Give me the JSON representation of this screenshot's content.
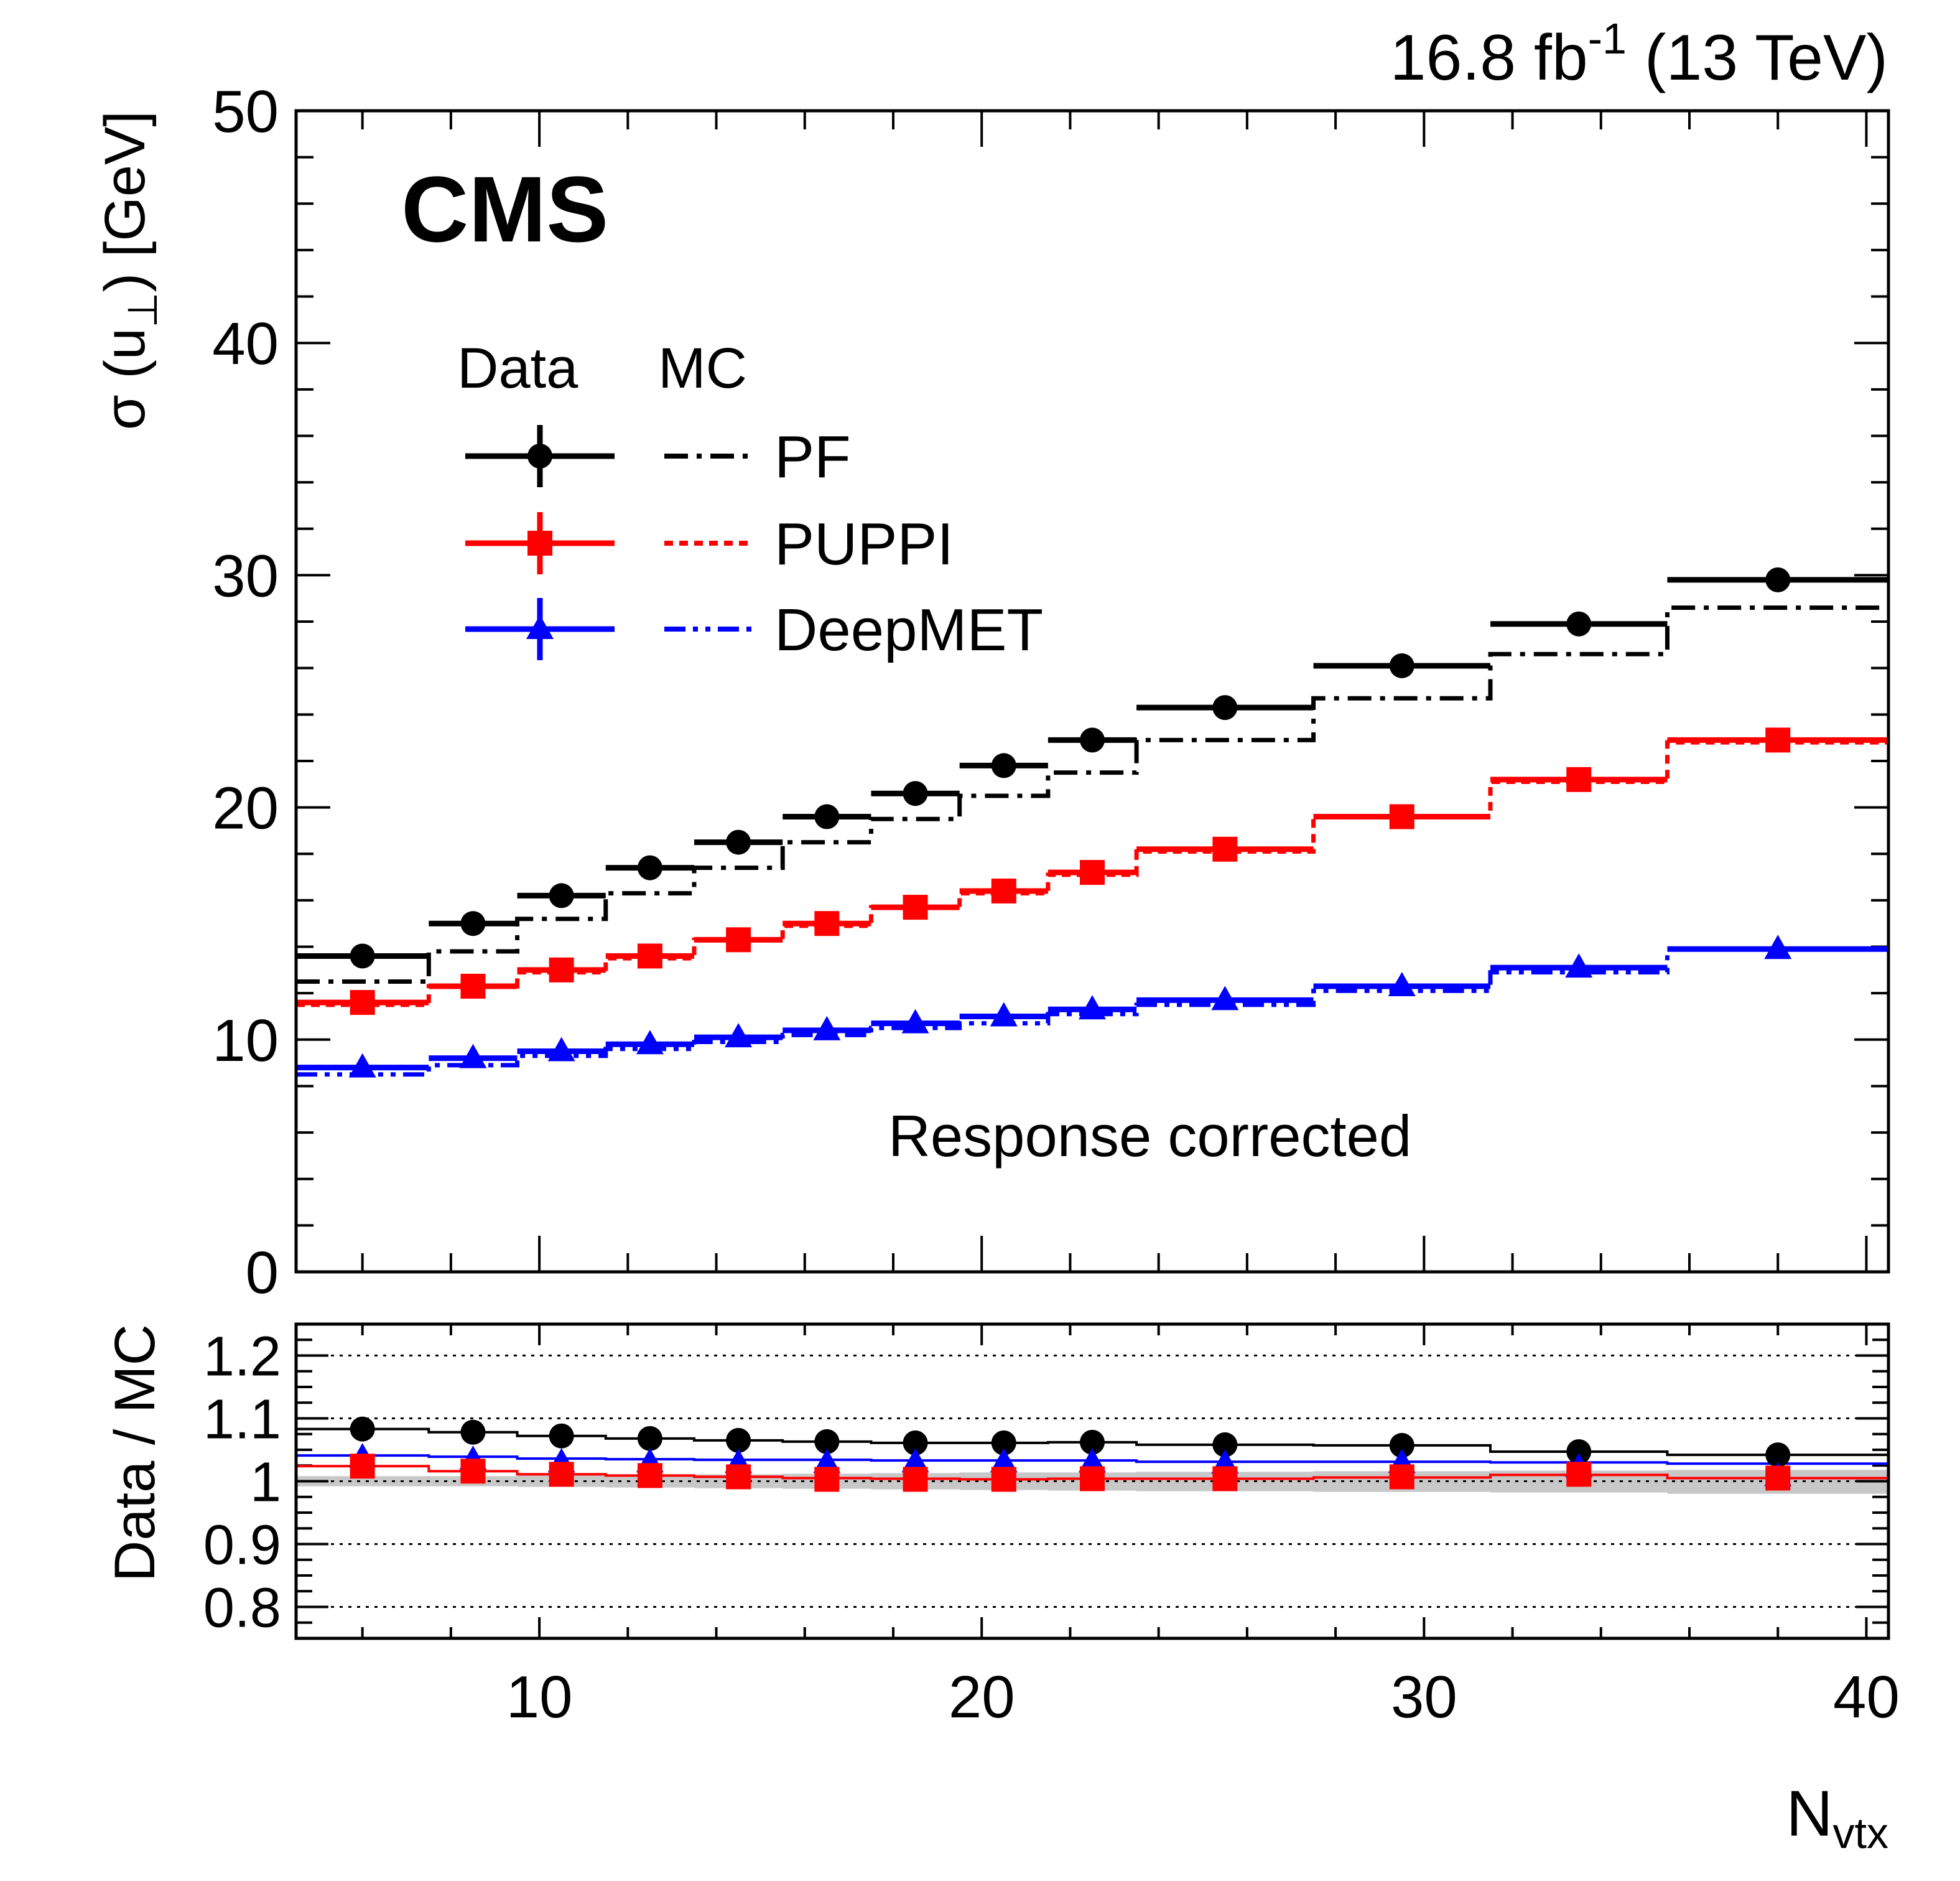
{
  "header": {
    "lumi_value": "16.8 fb",
    "lumi_exp": "-1",
    "energy": " (13 TeV)",
    "experiment": "CMS",
    "annotation": "Response corrected"
  },
  "legend": {
    "data_header": "Data",
    "mc_header": "MC",
    "entries": [
      "PF",
      "PUPPI",
      "DeepMET"
    ]
  },
  "colors": {
    "PF": "#000000",
    "PUPPI": "#ff0000",
    "DeepMET": "#0000ff",
    "band": "#c8c8c8"
  },
  "chart_data": [
    {
      "type": "line",
      "panel": "main",
      "ylabel_main": "σ (u",
      "ylabel_sub": "⊥",
      "ylabel_tail": ") [GeV]",
      "xlim": [
        4.5,
        40.5
      ],
      "ylim": [
        0,
        50
      ],
      "x_ticks": [
        10,
        20,
        30,
        40
      ],
      "y_ticks": [
        0,
        10,
        20,
        30,
        40,
        50
      ],
      "bin_edges": [
        4.5,
        7.5,
        9.5,
        11.5,
        13.5,
        15.5,
        17.5,
        19.5,
        21.5,
        23.5,
        27.5,
        31.5,
        35.5,
        40.5
      ],
      "x": [
        6,
        8.5,
        10.5,
        12.5,
        14.5,
        16.5,
        18.5,
        20.5,
        22.5,
        25.5,
        29.5,
        33.5,
        38
      ],
      "series": [
        {
          "name": "PF",
          "kind": "data",
          "marker": "circle",
          "values": [
            13.6,
            15.0,
            16.2,
            17.4,
            18.5,
            19.6,
            20.6,
            21.8,
            22.9,
            24.3,
            26.1,
            27.9,
            29.8
          ]
        },
        {
          "name": "PUPPI",
          "kind": "data",
          "marker": "square",
          "values": [
            11.6,
            12.3,
            13.0,
            13.6,
            14.3,
            15.0,
            15.7,
            16.4,
            17.2,
            18.2,
            19.6,
            21.2,
            22.9
          ]
        },
        {
          "name": "DeepMET",
          "kind": "data",
          "marker": "triangle",
          "values": [
            8.8,
            9.2,
            9.5,
            9.8,
            10.1,
            10.4,
            10.7,
            11.0,
            11.3,
            11.7,
            12.3,
            13.1,
            13.9
          ]
        },
        {
          "name": "PF",
          "kind": "mc",
          "style": "dash-dot",
          "values": [
            12.5,
            13.8,
            15.2,
            16.3,
            17.4,
            18.5,
            19.5,
            20.5,
            21.5,
            22.9,
            24.7,
            26.6,
            28.6
          ]
        },
        {
          "name": "PUPPI",
          "kind": "mc",
          "style": "dotted",
          "values": [
            11.5,
            12.3,
            12.9,
            13.5,
            14.3,
            14.9,
            15.7,
            16.3,
            17.1,
            18.1,
            19.6,
            21.1,
            22.8
          ]
        },
        {
          "name": "DeepMET",
          "kind": "mc",
          "style": "dash-dot-dot",
          "values": [
            8.5,
            8.9,
            9.3,
            9.6,
            9.9,
            10.2,
            10.5,
            10.7,
            11.1,
            11.5,
            12.1,
            12.9,
            13.9
          ]
        }
      ]
    },
    {
      "type": "line",
      "panel": "ratio",
      "ylabel": "Data  / MC",
      "xlabel_main": "N",
      "xlabel_sub": "vtx",
      "xlim": [
        4.5,
        40.5
      ],
      "ylim": [
        0.75,
        1.25
      ],
      "x_ticks": [
        10,
        20,
        30,
        40
      ],
      "y_ticks": [
        0.8,
        0.9,
        1,
        1.1,
        1.2
      ],
      "y_tick_labels": [
        "0.8",
        "0.9",
        "1",
        "1.1",
        "1.2"
      ],
      "bin_edges": [
        4.5,
        7.5,
        9.5,
        11.5,
        13.5,
        15.5,
        17.5,
        19.5,
        21.5,
        23.5,
        27.5,
        31.5,
        35.5,
        40.5
      ],
      "x": [
        6,
        8.5,
        10.5,
        12.5,
        14.5,
        16.5,
        18.5,
        20.5,
        22.5,
        25.5,
        29.5,
        33.5,
        38
      ],
      "series": [
        {
          "name": "PF",
          "marker": "circle",
          "values": [
            1.083,
            1.078,
            1.072,
            1.068,
            1.065,
            1.063,
            1.061,
            1.061,
            1.062,
            1.058,
            1.057,
            1.047,
            1.042
          ]
        },
        {
          "name": "DeepMET",
          "marker": "triangle",
          "values": [
            1.038,
            1.034,
            1.03,
            1.03,
            1.029,
            1.029,
            1.03,
            1.03,
            1.03,
            1.028,
            1.029,
            1.022,
            1.008
          ]
        },
        {
          "name": "PUPPI",
          "marker": "square",
          "values": [
            1.024,
            1.016,
            1.011,
            1.009,
            1.007,
            1.003,
            1.003,
            1.003,
            1.004,
            1.004,
            1.007,
            1.011,
            1.005
          ]
        },
        {
          "name": "PF",
          "kind": "line",
          "values": [
            1.083,
            1.078,
            1.072,
            1.068,
            1.065,
            1.063,
            1.061,
            1.061,
            1.062,
            1.058,
            1.057,
            1.047,
            1.042
          ]
        },
        {
          "name": "DeepMET",
          "kind": "line",
          "values": [
            1.041,
            1.039,
            1.036,
            1.035,
            1.034,
            1.034,
            1.033,
            1.033,
            1.033,
            1.031,
            1.031,
            1.03,
            1.028
          ]
        },
        {
          "name": "PUPPI",
          "kind": "line",
          "values": [
            1.024,
            1.016,
            1.011,
            1.009,
            1.007,
            1.005,
            1.004,
            1.003,
            1.004,
            1.004,
            1.006,
            1.01,
            1.005
          ]
        }
      ],
      "band": {
        "low": [
          0.992,
          0.992,
          0.991,
          0.99,
          0.989,
          0.988,
          0.987,
          0.986,
          0.985,
          0.984,
          0.983,
          0.982,
          0.98
        ],
        "high": [
          1.008,
          1.008,
          1.009,
          1.01,
          1.011,
          1.012,
          1.013,
          1.014,
          1.014,
          1.015,
          1.016,
          1.017,
          1.018
        ]
      }
    }
  ]
}
